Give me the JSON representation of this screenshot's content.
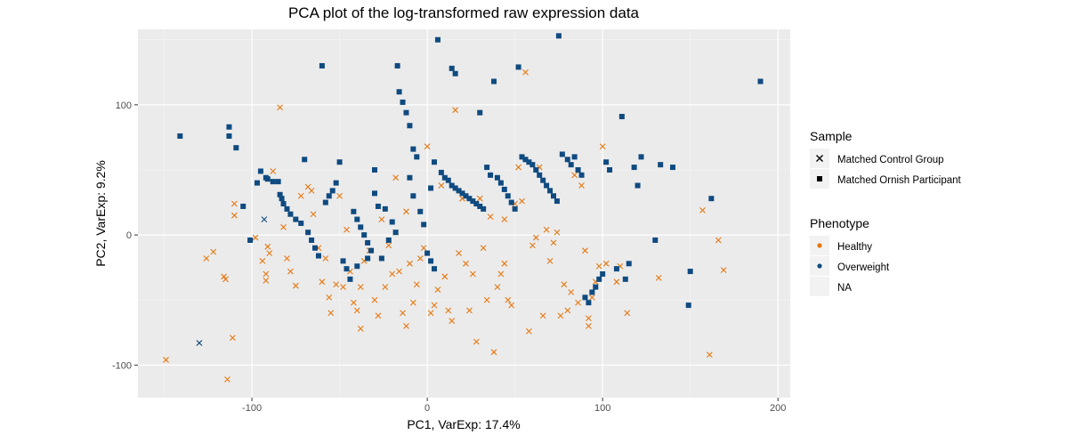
{
  "chart_data": {
    "type": "scatter",
    "title": "PCA plot of the log-transformed raw expression data",
    "xlabel": "PC1, VarExp: 17.4%",
    "ylabel": "PC2, VarExp: 9.2%",
    "xlim": [
      -165,
      207
    ],
    "ylim": [
      -125,
      158
    ],
    "x_ticks": [
      -100,
      0,
      100,
      200
    ],
    "x_tick_labels": [
      "-100",
      "0",
      "100",
      "200"
    ],
    "y_ticks": [
      -100,
      0,
      100
    ],
    "y_tick_labels": [
      "-100",
      "0",
      "100"
    ],
    "grid": true,
    "legend_position": "right",
    "colors": {
      "Healthy": "#e6770f",
      "Overweight": "#0f4a80",
      "NA": "#8a8a8a"
    },
    "legends": [
      {
        "title": "Sample",
        "items": [
          {
            "label": "Matched Control Group",
            "shape": "cross"
          },
          {
            "label": "Matched Ornish Participant",
            "shape": "square"
          }
        ]
      },
      {
        "title": "Phenotype",
        "items": [
          {
            "label": "Healthy",
            "color": "#e6770f"
          },
          {
            "label": "Overweight",
            "color": "#0f4a80"
          },
          {
            "label": "NA",
            "color": ""
          }
        ]
      }
    ],
    "series": [
      {
        "sample": "Matched Control Group",
        "phenotype": "Healthy",
        "shape": "cross",
        "color": "#e6770f",
        "points": [
          [
            -149,
            -96
          ],
          [
            -114,
            -111
          ],
          [
            -111,
            -79
          ],
          [
            -126,
            -18
          ],
          [
            -122,
            -13
          ],
          [
            -116,
            -32
          ],
          [
            -115,
            -34
          ],
          [
            -110,
            24
          ],
          [
            -110,
            15
          ],
          [
            -98,
            -2
          ],
          [
            -94,
            -20
          ],
          [
            -92,
            -30
          ],
          [
            -92,
            -35
          ],
          [
            -91,
            -9
          ],
          [
            -90,
            -14
          ],
          [
            -84,
            98
          ],
          [
            -88,
            49
          ],
          [
            -82,
            6
          ],
          [
            -80,
            -18
          ],
          [
            -78,
            -28
          ],
          [
            -75,
            -39
          ],
          [
            -72,
            30
          ],
          [
            -68,
            37
          ],
          [
            -65,
            16
          ],
          [
            -62,
            -10
          ],
          [
            -58,
            -18
          ],
          [
            -56,
            -48
          ],
          [
            -55,
            -60
          ],
          [
            -50,
            30
          ],
          [
            -52,
            -38
          ],
          [
            -48,
            -40
          ],
          [
            -46,
            4
          ],
          [
            -44,
            -28
          ],
          [
            -42,
            -52
          ],
          [
            -40,
            -58
          ],
          [
            -38,
            -72
          ],
          [
            -38,
            -40
          ],
          [
            -36,
            -20
          ],
          [
            -33,
            -12
          ],
          [
            -30,
            -50
          ],
          [
            -28,
            -62
          ],
          [
            -26,
            12
          ],
          [
            -24,
            -40
          ],
          [
            -22,
            -8
          ],
          [
            -20,
            -30
          ],
          [
            -18,
            44
          ],
          [
            -16,
            -28
          ],
          [
            -14,
            -60
          ],
          [
            -12,
            -70
          ],
          [
            -10,
            -22
          ],
          [
            -8,
            -52
          ],
          [
            -6,
            -38
          ],
          [
            -4,
            -18
          ],
          [
            -2,
            -10
          ],
          [
            0,
            68
          ],
          [
            2,
            -60
          ],
          [
            4,
            -54
          ],
          [
            6,
            -42
          ],
          [
            8,
            38
          ],
          [
            10,
            -32
          ],
          [
            12,
            -58
          ],
          [
            14,
            -66
          ],
          [
            16,
            96
          ],
          [
            18,
            -14
          ],
          [
            20,
            28
          ],
          [
            22,
            -22
          ],
          [
            24,
            -58
          ],
          [
            26,
            -30
          ],
          [
            28,
            -82
          ],
          [
            30,
            28
          ],
          [
            32,
            -10
          ],
          [
            34,
            -50
          ],
          [
            36,
            14
          ],
          [
            38,
            -90
          ],
          [
            40,
            -40
          ],
          [
            42,
            -30
          ],
          [
            44,
            -22
          ],
          [
            46,
            -50
          ],
          [
            48,
            -54
          ],
          [
            50,
            24
          ],
          [
            52,
            52
          ],
          [
            54,
            26
          ],
          [
            56,
            125
          ],
          [
            58,
            -74
          ],
          [
            60,
            -8
          ],
          [
            62,
            -2
          ],
          [
            64,
            52
          ],
          [
            66,
            -62
          ],
          [
            68,
            4
          ],
          [
            70,
            -20
          ],
          [
            72,
            -6
          ],
          [
            74,
            2
          ],
          [
            76,
            -62
          ],
          [
            78,
            -38
          ],
          [
            80,
            -58
          ],
          [
            82,
            -44
          ],
          [
            84,
            46
          ],
          [
            86,
            -52
          ],
          [
            88,
            38
          ],
          [
            90,
            -12
          ],
          [
            92,
            -64
          ],
          [
            92,
            -70
          ],
          [
            94,
            -48
          ],
          [
            96,
            -36
          ],
          [
            98,
            -24
          ],
          [
            100,
            68
          ],
          [
            102,
            -22
          ],
          [
            108,
            -36
          ],
          [
            110,
            -24
          ],
          [
            114,
            -60
          ],
          [
            132,
            -33
          ],
          [
            157,
            19
          ],
          [
            161,
            -92
          ],
          [
            166,
            -4
          ],
          [
            169,
            -27
          ],
          [
            -60,
            -36
          ],
          [
            -66,
            34
          ],
          [
            -12,
            18
          ],
          [
            -18,
            2
          ],
          [
            44,
            12
          ]
        ]
      },
      {
        "sample": "Matched Control Group",
        "phenotype": "Overweight",
        "shape": "cross",
        "color": "#0f4a80",
        "points": [
          [
            -130,
            -83
          ],
          [
            -93,
            12
          ]
        ]
      },
      {
        "sample": "Matched Ornish Participant",
        "phenotype": "Overweight",
        "shape": "square",
        "color": "#0f4a80",
        "points": [
          [
            -141,
            76
          ],
          [
            -113,
            83
          ],
          [
            -113,
            76
          ],
          [
            -109,
            67
          ],
          [
            -105,
            22
          ],
          [
            -101,
            -4
          ],
          [
            -97,
            40
          ],
          [
            -95,
            49
          ],
          [
            -92,
            44
          ],
          [
            -91,
            43
          ],
          [
            -88,
            41
          ],
          [
            -85,
            41
          ],
          [
            -84,
            31
          ],
          [
            -83,
            28
          ],
          [
            -82,
            24
          ],
          [
            -80,
            20
          ],
          [
            -78,
            16
          ],
          [
            -75,
            12
          ],
          [
            -72,
            9
          ],
          [
            -70,
            58
          ],
          [
            -68,
            2
          ],
          [
            -66,
            -4
          ],
          [
            -64,
            -10
          ],
          [
            -62,
            -16
          ],
          [
            -60,
            130
          ],
          [
            -58,
            25
          ],
          [
            -56,
            30
          ],
          [
            -54,
            34
          ],
          [
            -52,
            40
          ],
          [
            -50,
            56
          ],
          [
            -48,
            -20
          ],
          [
            -46,
            -26
          ],
          [
            -44,
            -34
          ],
          [
            -42,
            18
          ],
          [
            -40,
            12
          ],
          [
            -38,
            6
          ],
          [
            -36,
            0
          ],
          [
            -34,
            -6
          ],
          [
            -32,
            -12
          ],
          [
            -30,
            50
          ],
          [
            -28,
            22
          ],
          [
            -26,
            -18
          ],
          [
            -24,
            20
          ],
          [
            -22,
            -4
          ],
          [
            -20,
            10
          ],
          [
            -18,
            2
          ],
          [
            -17,
            130
          ],
          [
            -16,
            110
          ],
          [
            -14,
            102
          ],
          [
            -12,
            94
          ],
          [
            -10,
            84
          ],
          [
            -8,
            66
          ],
          [
            -6,
            60
          ],
          [
            -4,
            18
          ],
          [
            -2,
            8
          ],
          [
            0,
            -14
          ],
          [
            2,
            -20
          ],
          [
            4,
            56
          ],
          [
            6,
            150
          ],
          [
            8,
            48
          ],
          [
            10,
            44
          ],
          [
            12,
            42
          ],
          [
            14,
            38
          ],
          [
            16,
            36
          ],
          [
            18,
            34
          ],
          [
            20,
            32
          ],
          [
            22,
            30
          ],
          [
            24,
            28
          ],
          [
            26,
            26
          ],
          [
            28,
            24
          ],
          [
            30,
            22
          ],
          [
            32,
            20
          ],
          [
            34,
            52
          ],
          [
            36,
            46
          ],
          [
            38,
            118
          ],
          [
            40,
            44
          ],
          [
            42,
            40
          ],
          [
            44,
            35
          ],
          [
            46,
            30
          ],
          [
            48,
            25
          ],
          [
            50,
            20
          ],
          [
            52,
            129
          ],
          [
            54,
            60
          ],
          [
            56,
            58
          ],
          [
            58,
            56
          ],
          [
            60,
            54
          ],
          [
            62,
            50
          ],
          [
            64,
            46
          ],
          [
            66,
            42
          ],
          [
            68,
            38
          ],
          [
            70,
            34
          ],
          [
            72,
            30
          ],
          [
            74,
            26
          ],
          [
            75,
            153
          ],
          [
            77,
            62
          ],
          [
            80,
            58
          ],
          [
            82,
            54
          ],
          [
            84,
            60
          ],
          [
            86,
            50
          ],
          [
            88,
            46
          ],
          [
            90,
            -48
          ],
          [
            92,
            -52
          ],
          [
            94,
            -44
          ],
          [
            96,
            -40
          ],
          [
            98,
            -34
          ],
          [
            100,
            -30
          ],
          [
            102,
            56
          ],
          [
            104,
            50
          ],
          [
            108,
            -26
          ],
          [
            111,
            91
          ],
          [
            113,
            -34
          ],
          [
            115,
            -22
          ],
          [
            118,
            52
          ],
          [
            120,
            38
          ],
          [
            122,
            60
          ],
          [
            130,
            -4
          ],
          [
            133,
            54
          ],
          [
            140,
            52
          ],
          [
            150,
            -28
          ],
          [
            149,
            -54
          ],
          [
            162,
            28
          ],
          [
            190,
            118
          ],
          [
            -30,
            32
          ],
          [
            -34,
            -18
          ],
          [
            -8,
            30
          ],
          [
            2,
            36
          ],
          [
            -40,
            -24
          ],
          [
            4,
            -26
          ],
          [
            14,
            128
          ],
          [
            16,
            124
          ],
          [
            30,
            94
          ],
          [
            -10,
            44
          ]
        ]
      }
    ]
  }
}
